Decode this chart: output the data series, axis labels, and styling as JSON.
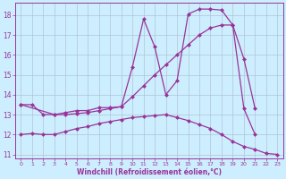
{
  "xlabel": "Windchill (Refroidissement éolien,°C)",
  "line_color": "#993399",
  "markersize": 2.5,
  "linewidth": 0.9,
  "background_color": "#cceeff",
  "grid_color": "#aabbcc",
  "xlim": [
    -0.5,
    23.5
  ],
  "ylim": [
    10.8,
    18.6
  ],
  "yticks": [
    11,
    12,
    13,
    14,
    15,
    16,
    17,
    18
  ],
  "xticks": [
    0,
    1,
    2,
    3,
    4,
    5,
    6,
    7,
    8,
    9,
    10,
    11,
    12,
    13,
    14,
    15,
    16,
    17,
    18,
    19,
    20,
    21,
    22,
    23
  ],
  "line1_x": [
    0,
    1,
    2,
    3,
    4,
    5,
    6,
    7,
    8,
    9,
    10,
    11,
    12,
    13,
    14,
    15,
    16,
    17,
    18,
    19,
    20,
    21
  ],
  "line1_y": [
    13.5,
    13.5,
    13.0,
    13.0,
    13.1,
    13.2,
    13.2,
    13.35,
    13.35,
    13.4,
    15.4,
    17.8,
    16.4,
    14.0,
    14.7,
    18.05,
    18.3,
    18.3,
    18.25,
    17.5,
    13.3,
    12.0
  ],
  "line2_x": [
    0,
    3,
    4,
    5,
    6,
    7,
    8,
    9,
    10,
    11,
    12,
    13,
    14,
    15,
    16,
    17,
    18,
    19,
    20,
    21
  ],
  "line2_y": [
    13.5,
    13.0,
    13.0,
    13.05,
    13.1,
    13.2,
    13.3,
    13.4,
    13.9,
    14.45,
    15.0,
    15.5,
    16.0,
    16.5,
    17.0,
    17.35,
    17.5,
    17.5,
    15.8,
    13.3
  ],
  "line3_x": [
    0,
    1,
    2,
    3,
    4,
    5,
    6,
    7,
    8,
    9,
    10,
    11,
    12,
    13,
    14,
    15,
    16,
    17,
    18,
    19,
    20,
    21,
    22,
    23
  ],
  "line3_y": [
    12.0,
    12.05,
    12.0,
    12.0,
    12.15,
    12.3,
    12.4,
    12.55,
    12.65,
    12.75,
    12.85,
    12.9,
    12.95,
    13.0,
    12.85,
    12.7,
    12.5,
    12.3,
    12.0,
    11.65,
    11.4,
    11.25,
    11.05,
    11.0
  ]
}
